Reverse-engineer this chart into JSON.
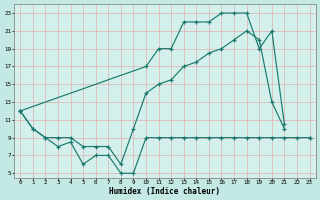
{
  "xlabel": "Humidex (Indice chaleur)",
  "xlim": [
    -0.5,
    23.5
  ],
  "ylim": [
    4.5,
    24
  ],
  "yticks": [
    5,
    7,
    9,
    11,
    13,
    15,
    17,
    19,
    21,
    23
  ],
  "xticks": [
    0,
    1,
    2,
    3,
    4,
    5,
    6,
    7,
    8,
    9,
    10,
    11,
    12,
    13,
    14,
    15,
    16,
    17,
    18,
    19,
    20,
    21,
    22,
    23
  ],
  "fig_bg_color": "#c4e8e4",
  "plot_bg_color": "#d4f0ec",
  "line_color": "#1a7a6e",
  "grid_color": "#e0a0a0",
  "line1_x": [
    0,
    1,
    2,
    3,
    4,
    5,
    6,
    7,
    8,
    9,
    10,
    11,
    12,
    13,
    14,
    15,
    16,
    17,
    18,
    19,
    20,
    21,
    22,
    23
  ],
  "line1_y": [
    12,
    10,
    9,
    8,
    8.5,
    6,
    7,
    7,
    5,
    5,
    9,
    9,
    9,
    9,
    9,
    9,
    9,
    9,
    9,
    9,
    9,
    9,
    9,
    9
  ],
  "line2_x": [
    0,
    1,
    2,
    3,
    4,
    5,
    6,
    7,
    8,
    9,
    10,
    11,
    12,
    13,
    14,
    15,
    16,
    17,
    18,
    19,
    20,
    21
  ],
  "line2_y": [
    12,
    10,
    9,
    9,
    9,
    8,
    8,
    8,
    6,
    10,
    14,
    15,
    15.5,
    17,
    17.5,
    18.5,
    19,
    20,
    21,
    20,
    13,
    10
  ],
  "line3_x": [
    0,
    10,
    11,
    12,
    13,
    14,
    15,
    16,
    17,
    18,
    19,
    20,
    21,
    22,
    23
  ],
  "line3_y": [
    12,
    17,
    19,
    19,
    22,
    22,
    22,
    23,
    23,
    23,
    19,
    21,
    10.5,
    null,
    9
  ]
}
